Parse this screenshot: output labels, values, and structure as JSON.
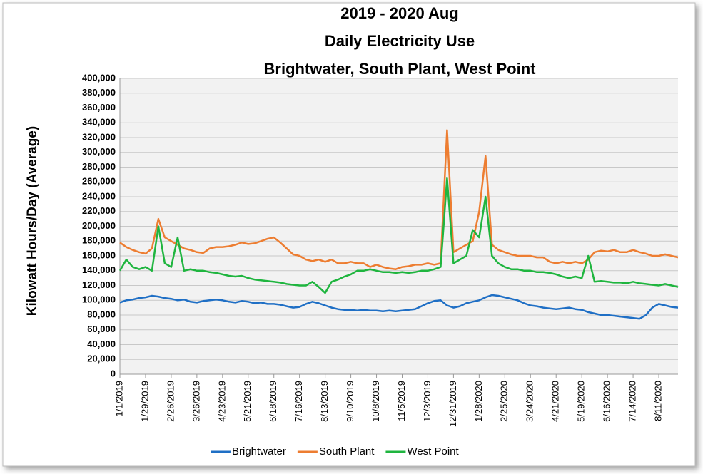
{
  "chart_data": {
    "type": "line",
    "title": [
      "2019 - 2020 Aug",
      "Daily Electricity Use",
      "Brightwater, South Plant, West Point"
    ],
    "y_label": "Kilowatt Hours/Day (Average)",
    "categories": [
      "1/1/2019",
      null,
      null,
      null,
      "1/29/2019",
      null,
      null,
      null,
      "2/26/2019",
      null,
      null,
      null,
      "3/26/2019",
      null,
      null,
      null,
      "4/23/2019",
      null,
      null,
      null,
      "5/21/2019",
      null,
      null,
      null,
      "6/18/2019",
      null,
      null,
      null,
      "7/16/2019",
      null,
      null,
      null,
      "8/13/2019",
      null,
      null,
      null,
      "9/10/2019",
      null,
      null,
      null,
      "10/8/2019",
      null,
      null,
      null,
      "11/5/2019",
      null,
      null,
      null,
      "12/3/2019",
      null,
      null,
      null,
      "12/31/2019",
      null,
      null,
      null,
      "1/28/2020",
      null,
      null,
      null,
      "2/25/2020",
      null,
      null,
      null,
      "3/24/2020",
      null,
      null,
      null,
      "4/21/2020",
      null,
      null,
      null,
      "5/19/2020",
      null,
      null,
      null,
      "6/16/2020",
      null,
      null,
      null,
      "7/14/2020",
      null,
      null,
      null,
      "8/11/2020",
      null,
      null,
      null
    ],
    "series": [
      {
        "name": "Brightwater",
        "color": "#1f6fc5",
        "values": [
          97000,
          100000,
          101000,
          103000,
          104000,
          106000,
          105000,
          103000,
          102000,
          100000,
          101000,
          98000,
          97000,
          99000,
          100000,
          101000,
          100000,
          98000,
          97000,
          99000,
          98000,
          96000,
          97000,
          95000,
          95000,
          94000,
          92000,
          90000,
          91000,
          95000,
          98000,
          96000,
          93000,
          90000,
          88000,
          87000,
          87000,
          86000,
          87000,
          86000,
          86000,
          85000,
          86000,
          85000,
          86000,
          87000,
          88000,
          92000,
          96000,
          99000,
          100000,
          93000,
          90000,
          92000,
          96000,
          98000,
          100000,
          104000,
          107000,
          106000,
          104000,
          102000,
          100000,
          96000,
          93000,
          92000,
          90000,
          89000,
          88000,
          89000,
          90000,
          88000,
          87000,
          84000,
          82000,
          80000,
          80000,
          79000,
          78000,
          77000,
          76000,
          75000,
          80000,
          90000,
          95000,
          93000,
          91000,
          90000
        ]
      },
      {
        "name": "South Plant",
        "color": "#ed7d31",
        "values": [
          178000,
          172000,
          168000,
          165000,
          163000,
          170000,
          210000,
          185000,
          180000,
          175000,
          170000,
          168000,
          165000,
          164000,
          170000,
          172000,
          172000,
          173000,
          175000,
          178000,
          176000,
          177000,
          180000,
          183000,
          185000,
          178000,
          170000,
          162000,
          160000,
          155000,
          153000,
          155000,
          152000,
          155000,
          150000,
          150000,
          152000,
          150000,
          150000,
          145000,
          148000,
          145000,
          143000,
          142000,
          145000,
          146000,
          148000,
          148000,
          150000,
          148000,
          150000,
          330000,
          165000,
          170000,
          175000,
          180000,
          220000,
          295000,
          175000,
          168000,
          165000,
          162000,
          160000,
          160000,
          160000,
          158000,
          158000,
          152000,
          150000,
          152000,
          150000,
          152000,
          150000,
          155000,
          165000,
          167000,
          166000,
          168000,
          165000,
          165000,
          168000,
          165000,
          163000,
          160000,
          160000,
          162000,
          160000,
          158000
        ]
      },
      {
        "name": "West Point",
        "color": "#1fb53f",
        "values": [
          140000,
          155000,
          145000,
          142000,
          145000,
          140000,
          200000,
          150000,
          145000,
          185000,
          140000,
          142000,
          140000,
          140000,
          138000,
          137000,
          135000,
          133000,
          132000,
          133000,
          130000,
          128000,
          127000,
          126000,
          125000,
          124000,
          122000,
          121000,
          120000,
          120000,
          125000,
          118000,
          110000,
          125000,
          128000,
          132000,
          135000,
          140000,
          140000,
          142000,
          140000,
          138000,
          138000,
          137000,
          138000,
          137000,
          138000,
          140000,
          140000,
          142000,
          145000,
          265000,
          150000,
          155000,
          160000,
          195000,
          185000,
          240000,
          160000,
          150000,
          145000,
          142000,
          142000,
          140000,
          140000,
          138000,
          138000,
          137000,
          135000,
          132000,
          130000,
          132000,
          130000,
          160000,
          125000,
          126000,
          125000,
          124000,
          124000,
          123000,
          125000,
          123000,
          122000,
          121000,
          120000,
          122000,
          120000,
          118000
        ]
      }
    ],
    "ylim": [
      0,
      400000
    ],
    "yticks": [
      0,
      {
        "value": 20000,
        "label": "20,000"
      },
      {
        "value": 40000,
        "label": "40,000"
      },
      {
        "value": 60000,
        "label": "60,000"
      },
      {
        "value": 80000,
        "label": "80,000"
      },
      {
        "value": 100000,
        "label": "100,000"
      },
      {
        "value": 120000,
        "label": "120,000"
      },
      {
        "value": 140000,
        "label": "140,000"
      },
      {
        "value": 160000,
        "label": "160,000"
      },
      {
        "value": 180000,
        "label": "180,000"
      },
      {
        "value": 200000,
        "label": "200,000"
      },
      {
        "value": 220000,
        "label": "220,000"
      },
      {
        "value": 240000,
        "label": "240,000"
      },
      {
        "value": 260000,
        "label": "260,000"
      },
      {
        "value": 280000,
        "label": "280,000"
      },
      {
        "value": 300000,
        "label": "300,000"
      },
      {
        "value": 320000,
        "label": "320,000"
      },
      {
        "value": 340000,
        "label": "340,000"
      },
      {
        "value": 360000,
        "label": "360,000"
      },
      {
        "value": 380000,
        "label": "380,000"
      },
      {
        "value": 400000,
        "label": "400,000"
      }
    ],
    "grid": true,
    "legend": "bottom"
  }
}
